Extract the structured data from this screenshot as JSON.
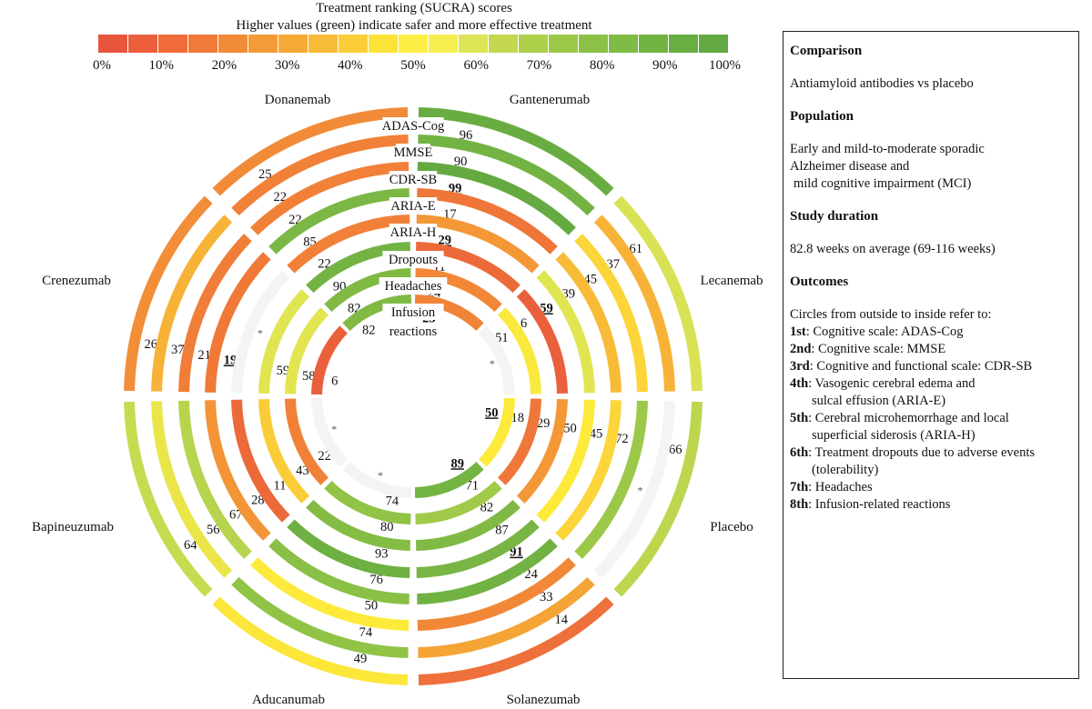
{
  "legend": {
    "title": "Treatment ranking (SUCRA) scores",
    "subtitle": "Higher values (green) indicate safer and more effective treatment",
    "ticks": [
      "0%",
      "10%",
      "20%",
      "30%",
      "40%",
      "50%",
      "60%",
      "70%",
      "80%",
      "90%",
      "100%"
    ],
    "colors": [
      "#e8553d",
      "#ec5f3c",
      "#ef6c3a",
      "#f07a38",
      "#f28b37",
      "#f49a36",
      "#f6aa36",
      "#f8bb37",
      "#fbcd37",
      "#fde23a",
      "#fdee45",
      "#f4ee50",
      "#dde455",
      "#c4d74f",
      "#aed04b",
      "#9cc848",
      "#8cc146",
      "#7fbb45",
      "#72b443",
      "#68ae42",
      "#62a941"
    ]
  },
  "chart_data": {
    "type": "radial-bar",
    "title": "Treatment ranking (SUCRA) scores",
    "subtitle": "Higher values (green) indicate safer and more effective treatment",
    "treatments": [
      "Donanemab",
      "Gantenerumab",
      "Lecanemab",
      "Placebo",
      "Solanezumab",
      "Aducanumab",
      "Bapineuzumab",
      "Crenezumab"
    ],
    "rings": [
      "ADAS-Cog",
      "MMSE",
      "CDR-SB",
      "ARIA-E",
      "ARIA-H",
      "Dropouts",
      "Headaches",
      "Infusion reactions"
    ],
    "ring_labels": [
      "ADAS-Cog",
      "MMSE",
      "CDR-SB",
      "ARIA-E",
      "ARIA-H",
      "Dropouts",
      "Headaches",
      "Infusion",
      "reactions"
    ],
    "missing_marker": "*",
    "values": [
      [
        96,
        90,
        99,
        17,
        29,
        11,
        24,
        23
      ],
      [
        61,
        37,
        45,
        39,
        59,
        6,
        51,
        null
      ],
      [
        66,
        null,
        72,
        45,
        50,
        29,
        18,
        50
      ],
      [
        14,
        33,
        24,
        91,
        87,
        82,
        71,
        89
      ],
      [
        49,
        74,
        50,
        76,
        93,
        80,
        74,
        null
      ],
      [
        64,
        56,
        67,
        28,
        11,
        43,
        22,
        null
      ],
      [
        26,
        37,
        21,
        19,
        null,
        59,
        58,
        6
      ],
      [
        25,
        22,
        22,
        85,
        22,
        90,
        82,
        82
      ]
    ],
    "highlighted": [
      [
        0,
        2
      ],
      [
        0,
        4
      ],
      [
        0,
        7
      ],
      [
        1,
        4
      ],
      [
        2,
        7
      ],
      [
        3,
        3
      ],
      [
        3,
        7
      ],
      [
        6,
        3
      ]
    ]
  },
  "info": {
    "comparison_heading": "Comparison",
    "comparison_text": "Antiamyloid antibodies vs placebo",
    "population_heading": "Population",
    "population_lines": [
      "Early and mild-to-moderate sporadic",
      "Alzheimer disease and",
      "mild cognitive impairment (MCI)"
    ],
    "duration_heading": "Study duration",
    "duration_text": "82.8 weeks on average (69-116 weeks)",
    "outcomes_heading": "Outcomes",
    "outcomes_intro": "Circles from outside to inside refer to:",
    "outcomes": [
      {
        "ord": "1st",
        "lines": [
          "Cognitive scale: ADAS-Cog"
        ]
      },
      {
        "ord": "2nd",
        "lines": [
          "Cognitive scale: MMSE"
        ]
      },
      {
        "ord": "3rd",
        "lines": [
          "Cognitive and functional scale: CDR-SB"
        ]
      },
      {
        "ord": "4th",
        "lines": [
          "Vasogenic cerebral edema and",
          "sulcal effusion (ARIA-E)"
        ]
      },
      {
        "ord": "5th",
        "lines": [
          "Cerebral microhemorrhage and local",
          "superficial siderosis (ARIA-H)"
        ]
      },
      {
        "ord": "6th",
        "lines": [
          "Treatment dropouts due to adverse events",
          "(tolerability)"
        ]
      },
      {
        "ord": "7th",
        "lines": [
          "Headaches"
        ]
      },
      {
        "ord": "8th",
        "lines": [
          "Infusion-related reactions"
        ]
      }
    ]
  }
}
